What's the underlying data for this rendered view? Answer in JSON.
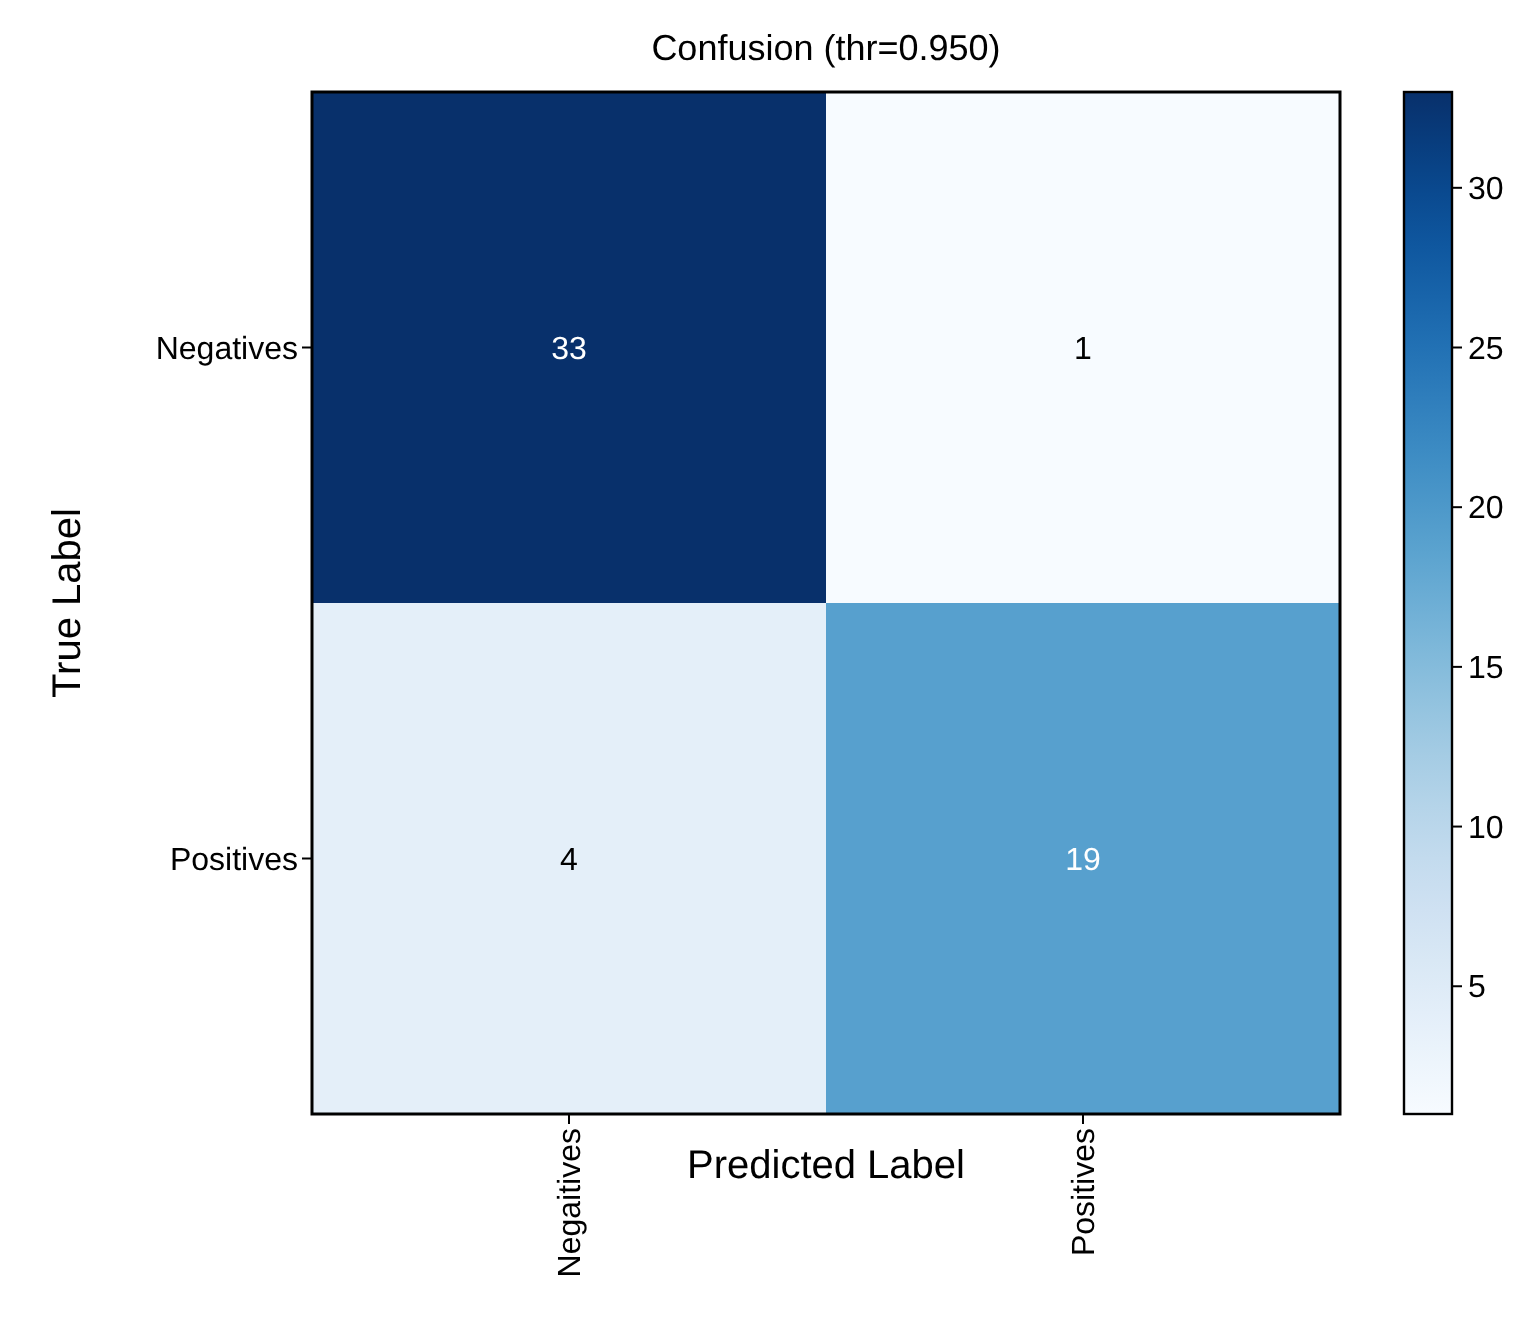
{
  "chart_data": {
    "type": "heatmap",
    "title": "Confusion (thr=0.950)",
    "xlabel": "Predicted Label",
    "ylabel": "True Label",
    "categories": [
      "Negaitives",
      "Positives"
    ],
    "y_categories": [
      "Negatives",
      "Positives"
    ],
    "cells": [
      [
        33,
        1
      ],
      [
        4,
        19
      ]
    ],
    "clim": [
      1,
      33
    ],
    "cticks": [
      5,
      10,
      15,
      20,
      25,
      30
    ],
    "data_labels": true
  }
}
